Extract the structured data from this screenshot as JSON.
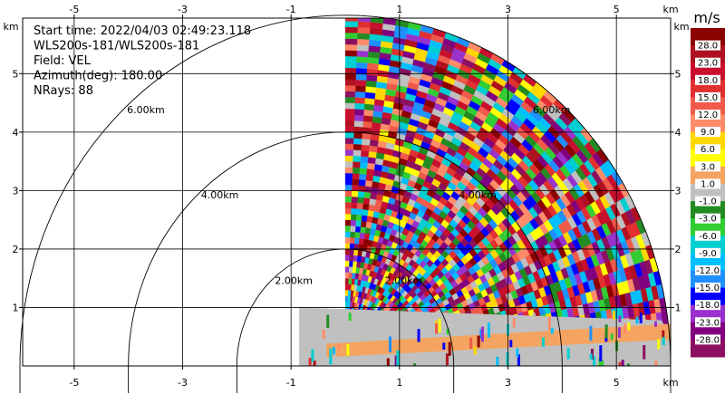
{
  "info": {
    "lines": [
      "Start time: 2022/04/03 02:49:23.118",
      "WLS200s-181/WLS200s-181",
      "Field: VEL",
      "Azimuth(deg): 180.00",
      "NRays: 88"
    ]
  },
  "chart_data": {
    "type": "heatmap",
    "title": "",
    "xlabel": "km",
    "ylabel": "km",
    "xlim": [
      -5.95,
      6.0
    ],
    "ylim": [
      0,
      5.95
    ],
    "x_ticks": [
      -5,
      -3,
      -1,
      1,
      3,
      5
    ],
    "y_ticks": [
      1,
      2,
      3,
      4,
      5
    ],
    "x_tick_labels": [
      "-5",
      "-3",
      "-1",
      "1",
      "3",
      "5"
    ],
    "y_tick_labels": [
      "1",
      "2",
      "3",
      "4",
      "5"
    ],
    "unit_label": "km",
    "grid": true,
    "range_rings_km": [
      2.0,
      4.0,
      6.0
    ],
    "range_ring_labels": [
      "2.00km",
      "4.00km",
      "6.00km"
    ],
    "data_sector": {
      "x_start_km": -0.85,
      "max_range_km": 6.0,
      "n_rays": 88,
      "azimuth_deg": 180.0,
      "low_band_top_km": 1.0
    },
    "colorbar": {
      "unit": "m/s",
      "labels": [
        "28.0",
        "23.0",
        "18.0",
        "15.0",
        "12.0",
        "9.0",
        "6.0",
        "3.0",
        "1.0",
        "-1.0",
        "-3.0",
        "-6.0",
        "-9.0",
        "-12.0",
        "-15.0",
        "-18.0",
        "-23.0",
        "-28.0"
      ],
      "colors": [
        "#8b0000",
        "#b01020",
        "#c8102e",
        "#e03030",
        "#f05a4a",
        "#ff8c69",
        "#ffd700",
        "#ffff00",
        "#f4a460",
        "#c0c0c0",
        "#228b22",
        "#32cd32",
        "#00ced1",
        "#00bfff",
        "#1e90ff",
        "#0000ff",
        "#9932cc",
        "#800080",
        "#8b1060"
      ]
    }
  }
}
